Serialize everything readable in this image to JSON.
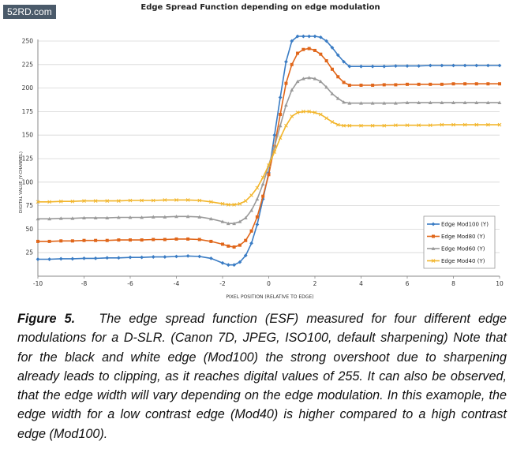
{
  "watermark": "52RD.com",
  "caption": {
    "figure_label": "Figure 5.",
    "text": "The edge spread function (ESF) measured for four different edge modulations for a D-SLR. (Canon 7D, JPEG, ISO100, default sharpening) Note that for the black and white edge (Mod100) the strong overshoot due to sharpening already leads to clipping, as it reaches digital values of 255.  It can also be observed, that the edge width will vary depending on the edge modulation. In this examople, the edge width for a low contrast edge (Mod40) is higher compared to a high contrast edge (Mod100)."
  },
  "chart_data": {
    "type": "line",
    "title": "Edge Spread Function depending on edge modulation",
    "xlabel": "PIXEL POSITION (RELATIVE TO EDGE)",
    "ylabel": "DIGITAL VALUE (Y-CHANNEL)",
    "xlim": [
      -10,
      10
    ],
    "ylim": [
      0,
      250
    ],
    "x_ticks": [
      -10,
      -8,
      -6,
      -4,
      -2,
      0,
      2,
      4,
      6,
      8,
      10
    ],
    "y_ticks": [
      25,
      50,
      75,
      100,
      125,
      150,
      175,
      200,
      225,
      250
    ],
    "grid": "horizontal",
    "legend_position": "bottom-right",
    "x": [
      -10,
      -9.5,
      -9,
      -8.5,
      -8,
      -7.5,
      -7,
      -6.5,
      -6,
      -5.5,
      -5,
      -4.5,
      -4,
      -3.5,
      -3,
      -2.5,
      -2,
      -1.75,
      -1.5,
      -1.25,
      -1,
      -0.75,
      -0.5,
      -0.25,
      0,
      0.25,
      0.5,
      0.75,
      1,
      1.25,
      1.5,
      1.75,
      2,
      2.25,
      2.5,
      2.75,
      3,
      3.25,
      3.5,
      4,
      4.5,
      5,
      5.5,
      6,
      6.5,
      7,
      7.5,
      8,
      8.5,
      9,
      9.5,
      10
    ],
    "series": [
      {
        "name": "Edge Mod100 (Y)",
        "color": "#3a7cc4",
        "marker": "diamond",
        "values": [
          18,
          18,
          18.5,
          18.5,
          19,
          19,
          19.5,
          19.5,
          20,
          20,
          20.5,
          20.5,
          21,
          21.5,
          21,
          19,
          14,
          12,
          12,
          15,
          22,
          35,
          55,
          82,
          110,
          150,
          190,
          228,
          250,
          255,
          255,
          255,
          255,
          254,
          250,
          243,
          235,
          228,
          223,
          223,
          223,
          223,
          223.5,
          223.5,
          223.5,
          224,
          224,
          224,
          224,
          224,
          224,
          224
        ]
      },
      {
        "name": "Edge Mod80 (Y)",
        "color": "#e0661a",
        "marker": "square",
        "values": [
          37,
          37,
          37.5,
          37.5,
          38,
          38,
          38,
          38.5,
          38.5,
          38.5,
          39,
          39,
          39.5,
          39.5,
          39,
          37,
          34,
          32,
          31,
          33,
          38,
          48,
          63,
          85,
          108,
          138,
          172,
          205,
          225,
          237,
          241,
          242,
          240,
          236,
          229,
          220,
          212,
          206,
          203,
          203,
          203,
          203.5,
          203.5,
          204,
          204,
          204,
          204,
          204.5,
          204.5,
          204.5,
          204.5,
          204.5
        ]
      },
      {
        "name": "Edge Mod60 (Y)",
        "color": "#9a9a9a",
        "marker": "triangle",
        "values": [
          61,
          61,
          61.5,
          61.5,
          62,
          62,
          62,
          62.5,
          62.5,
          62.5,
          63,
          63,
          63.5,
          63.5,
          63,
          61,
          58,
          56,
          56,
          58,
          62,
          70,
          82,
          98,
          118,
          138,
          160,
          182,
          198,
          207,
          210,
          211,
          210,
          207,
          201,
          194,
          189,
          185,
          184,
          184,
          184,
          184,
          184,
          184.5,
          184.5,
          184.5,
          184.5,
          184.5,
          184.5,
          184.5,
          184.5,
          184.5
        ]
      },
      {
        "name": "Edge Mod40 (Y)",
        "color": "#f2b52a",
        "marker": "x",
        "values": [
          79,
          79,
          79.5,
          79.5,
          80,
          80,
          80,
          80,
          80.5,
          80.5,
          80.5,
          81,
          81,
          81,
          80.5,
          79,
          77,
          76,
          76,
          77,
          80,
          86,
          94,
          105,
          118,
          132,
          147,
          160,
          170,
          174,
          175,
          175,
          174,
          172,
          168,
          164,
          161,
          160,
          160,
          160,
          160,
          160,
          160.5,
          160.5,
          160.5,
          160.5,
          161,
          161,
          161,
          161,
          161,
          161
        ]
      }
    ]
  }
}
